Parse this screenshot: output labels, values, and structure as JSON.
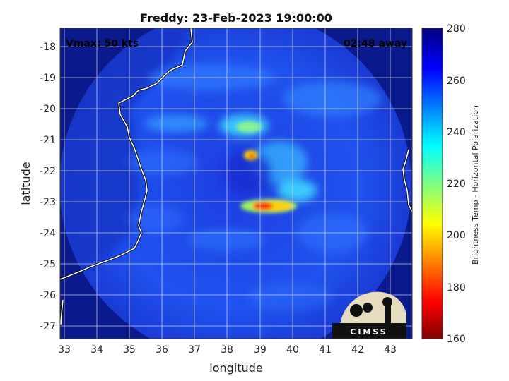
{
  "figure": {
    "title": "Freddy: 23-Feb-2023 19:00:00",
    "vmax_label": "Vmax: 50 kts",
    "time_offset_label": "02:48 away",
    "xlabel": "longitude",
    "ylabel": "latitude",
    "colorbar_label": "Brightness Temp - Horizontal Polarization",
    "logo_text": "CIMSS"
  },
  "axes": {
    "x_ticks": [
      "33",
      "34",
      "35",
      "36",
      "37",
      "38",
      "39",
      "40",
      "41",
      "42",
      "43"
    ],
    "y_ticks": [
      "-18",
      "-19",
      "-20",
      "-21",
      "-22",
      "-23",
      "-24",
      "-25",
      "-26",
      "-27"
    ],
    "colorbar_ticks": [
      "280",
      "260",
      "240",
      "220",
      "200",
      "180",
      "160"
    ]
  },
  "chart_data": {
    "type": "heatmap",
    "title": "Freddy: 23-Feb-2023 19:00:00",
    "xlabel": "longitude",
    "ylabel": "latitude",
    "xlim": [
      32.9,
      43.6
    ],
    "ylim": [
      -27.4,
      -17.5
    ],
    "grid": true,
    "colorbar": {
      "label": "Brightness Temp - Horizontal Polarization",
      "range": [
        160,
        280
      ],
      "colormap": "jet"
    },
    "annotations": [
      "Vmax: 50 kts",
      "02:48 away"
    ]
  },
  "colors": {
    "background_navy": "#0a1a8c",
    "field_blue": "#1f4fe8",
    "coastline": "#ffffff",
    "grid": "#d9d9d9"
  }
}
